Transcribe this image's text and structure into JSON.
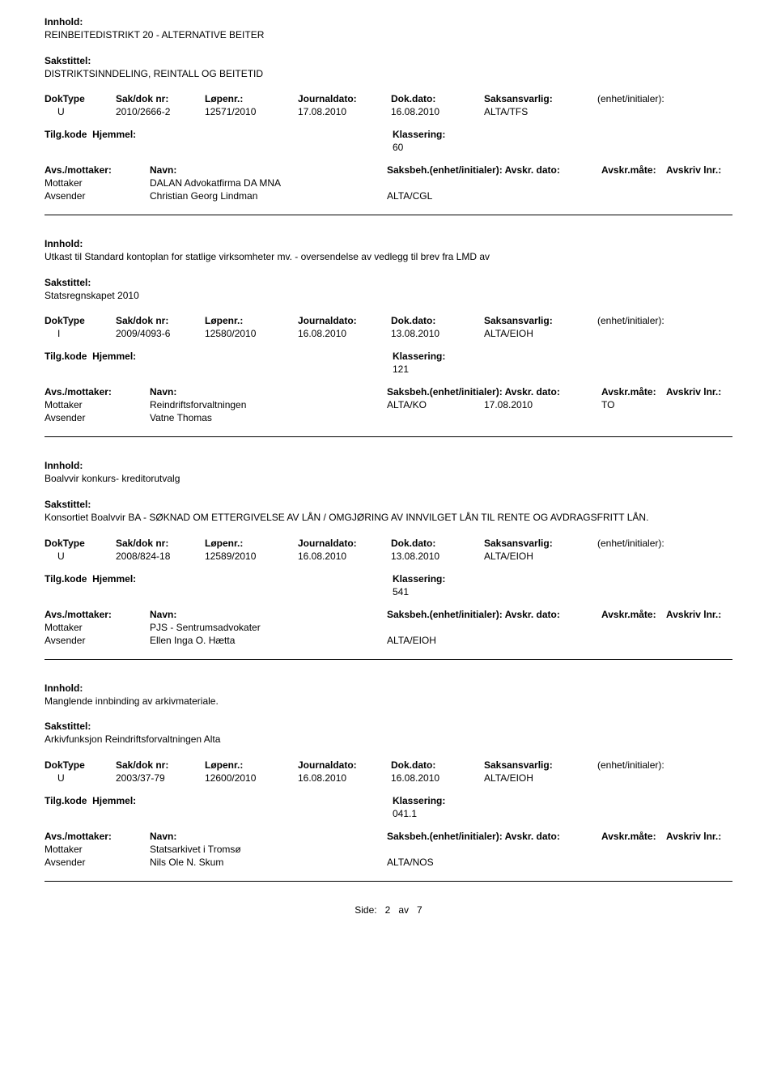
{
  "labels": {
    "innhold": "Innhold:",
    "sakstittel": "Sakstittel:",
    "doktype": "DokType",
    "sakdoknr": "Sak/dok nr:",
    "lopenr": "Løpenr.:",
    "journaldato": "Journaldato:",
    "dokdato": "Dok.dato:",
    "saksansvarlig": "Saksansvarlig:",
    "enhet_init": "(enhet/initialer):",
    "tilgkode": "Tilg.kode",
    "hjemmel": "Hjemmel:",
    "klassering": "Klassering:",
    "avs_mottaker": "Avs./mottaker:",
    "navn": "Navn:",
    "saksbeh_ei": "Saksbeh.(enhet/initialer):",
    "avskr_dato": "Avskr. dato:",
    "avskr_mate": "Avskr.måte:",
    "avskriv_lnr": "Avskriv lnr.:",
    "mottaker": "Mottaker",
    "avsender": "Avsender"
  },
  "entries": [
    {
      "innhold": "REINBEITEDISTRIKT 20 - ALTERNATIVE BEITER",
      "sakstittel": "DISTRIKTSINNDELING, REINTALL OG BEITETID",
      "doktype": "U",
      "sakdoknr": "2010/2666-2",
      "lopenr": "12571/2010",
      "journaldato": "17.08.2010",
      "dokdato": "16.08.2010",
      "saksansvarlig": "ALTA/TFS",
      "klassering": "60",
      "mottaker_navn": "DALAN Advokatfirma DA MNA",
      "mottaker_saksbeh": "",
      "mottaker_avskrdato": "",
      "mottaker_avskrmate": "",
      "avsender_navn": "Christian Georg Lindman",
      "avsender_kode": "ALTA/CGL"
    },
    {
      "innhold": "Utkast til Standard kontoplan for statlige virksomheter mv. - oversendelse av vedlegg til brev fra LMD av",
      "sakstittel": "Statsregnskapet 2010",
      "doktype": "I",
      "sakdoknr": "2009/4093-6",
      "lopenr": "12580/2010",
      "journaldato": "16.08.2010",
      "dokdato": "13.08.2010",
      "saksansvarlig": "ALTA/EIOH",
      "klassering": "121",
      "mottaker_navn": "Reindriftsforvaltningen",
      "mottaker_saksbeh": "ALTA/KO",
      "mottaker_avskrdato": "17.08.2010",
      "mottaker_avskrmate": "TO",
      "avsender_navn": "Vatne Thomas",
      "avsender_kode": ""
    },
    {
      "innhold": "Boalvvir konkurs- kreditorutvalg",
      "sakstittel": "Konsortiet Boalvvir BA - SØKNAD OM ETTERGIVELSE AV LÅN / OMGJØRING AV INNVILGET LÅN TIL RENTE OG AVDRAGSFRITT LÅN.",
      "doktype": "U",
      "sakdoknr": "2008/824-18",
      "lopenr": "12589/2010",
      "journaldato": "16.08.2010",
      "dokdato": "13.08.2010",
      "saksansvarlig": "ALTA/EIOH",
      "klassering": "541",
      "mottaker_navn": "PJS - Sentrumsadvokater",
      "mottaker_saksbeh": "",
      "mottaker_avskrdato": "",
      "mottaker_avskrmate": "",
      "avsender_navn": "Ellen Inga O. Hætta",
      "avsender_kode": "ALTA/EIOH"
    },
    {
      "innhold": "Manglende innbinding av arkivmateriale.",
      "sakstittel": "Arkivfunksjon Reindriftsforvaltningen Alta",
      "doktype": "U",
      "sakdoknr": "2003/37-79",
      "lopenr": "12600/2010",
      "journaldato": "16.08.2010",
      "dokdato": "16.08.2010",
      "saksansvarlig": "ALTA/EIOH",
      "klassering": "041.1",
      "mottaker_navn": "Statsarkivet i Tromsø",
      "mottaker_saksbeh": "",
      "mottaker_avskrdato": "",
      "mottaker_avskrmate": "",
      "avsender_navn": "Nils Ole N. Skum",
      "avsender_kode": "ALTA/NOS"
    }
  ],
  "footer": {
    "left": "Side:",
    "page": "2",
    "sep": "av",
    "total": "7"
  }
}
